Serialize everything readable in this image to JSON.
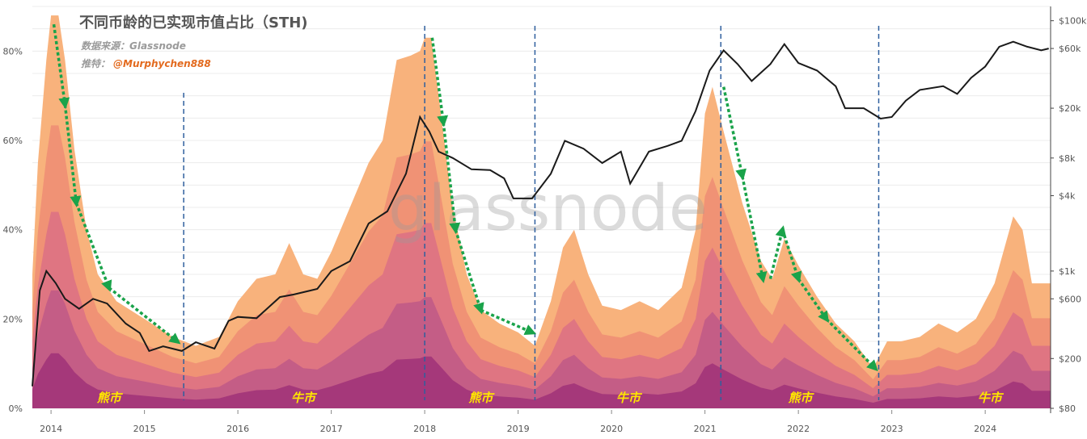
{
  "header": {
    "title": "不同币龄的已实现市值占比（STH)",
    "source": "数据来源：Glassnode",
    "twitter_prefix": "推特：",
    "twitter_handle": "@Murphychen888",
    "watermark": "glassnode"
  },
  "colors": {
    "band_outer": "#f8b27c",
    "band_2": "#f09275",
    "band_3": "#df7582",
    "band_4": "#c45d86",
    "band_inner": "#a5387a",
    "price_line": "#1a1a1a",
    "arrow": "#1aa34a",
    "cycle_line": "#2f5f9e",
    "phase_text": "#ffe600"
  },
  "chart_data": {
    "type": "area",
    "x_ticks": [
      "2014",
      "2015",
      "2016",
      "2017",
      "2018",
      "2019",
      "2020",
      "2021",
      "2022",
      "2023",
      "2024"
    ],
    "y_left_ticks": [
      "0%",
      "20%",
      "40%",
      "60%",
      "80%"
    ],
    "y_right_ticks": [
      "$80",
      "$200",
      "$600",
      "$1k",
      "$4k",
      "$8k",
      "$20k",
      "$60k",
      "$100k"
    ],
    "xlim": [
      2013.8,
      2024.7
    ],
    "ylim_left": [
      0,
      90
    ],
    "ylim_right": [
      80,
      130000
    ],
    "y_right_scale": "log",
    "grid": true,
    "sth_share_pct": [
      {
        "x": 2013.8,
        "y": 30
      },
      {
        "x": 2013.86,
        "y": 55
      },
      {
        "x": 2013.95,
        "y": 78
      },
      {
        "x": 2014.0,
        "y": 88
      },
      {
        "x": 2014.08,
        "y": 88
      },
      {
        "x": 2014.15,
        "y": 78
      },
      {
        "x": 2014.25,
        "y": 58
      },
      {
        "x": 2014.38,
        "y": 40
      },
      {
        "x": 2014.5,
        "y": 30
      },
      {
        "x": 2014.7,
        "y": 24
      },
      {
        "x": 2015.0,
        "y": 20
      },
      {
        "x": 2015.3,
        "y": 16
      },
      {
        "x": 2015.55,
        "y": 14
      },
      {
        "x": 2015.8,
        "y": 16
      },
      {
        "x": 2016.0,
        "y": 24
      },
      {
        "x": 2016.2,
        "y": 29
      },
      {
        "x": 2016.4,
        "y": 30
      },
      {
        "x": 2016.55,
        "y": 37
      },
      {
        "x": 2016.7,
        "y": 30
      },
      {
        "x": 2016.85,
        "y": 29
      },
      {
        "x": 2017.0,
        "y": 35
      },
      {
        "x": 2017.2,
        "y": 45
      },
      {
        "x": 2017.4,
        "y": 55
      },
      {
        "x": 2017.55,
        "y": 60
      },
      {
        "x": 2017.7,
        "y": 78
      },
      {
        "x": 2017.85,
        "y": 79
      },
      {
        "x": 2017.95,
        "y": 80
      },
      {
        "x": 2018.0,
        "y": 83
      },
      {
        "x": 2018.07,
        "y": 83
      },
      {
        "x": 2018.15,
        "y": 70
      },
      {
        "x": 2018.3,
        "y": 45
      },
      {
        "x": 2018.45,
        "y": 30
      },
      {
        "x": 2018.6,
        "y": 22
      },
      {
        "x": 2018.8,
        "y": 19
      },
      {
        "x": 2019.0,
        "y": 17
      },
      {
        "x": 2019.18,
        "y": 14
      },
      {
        "x": 2019.35,
        "y": 24
      },
      {
        "x": 2019.48,
        "y": 36
      },
      {
        "x": 2019.6,
        "y": 40
      },
      {
        "x": 2019.75,
        "y": 30
      },
      {
        "x": 2019.9,
        "y": 23
      },
      {
        "x": 2020.1,
        "y": 22
      },
      {
        "x": 2020.3,
        "y": 24
      },
      {
        "x": 2020.5,
        "y": 22
      },
      {
        "x": 2020.75,
        "y": 27
      },
      {
        "x": 2020.9,
        "y": 40
      },
      {
        "x": 2021.0,
        "y": 66
      },
      {
        "x": 2021.08,
        "y": 72
      },
      {
        "x": 2021.2,
        "y": 62
      },
      {
        "x": 2021.4,
        "y": 46
      },
      {
        "x": 2021.6,
        "y": 33
      },
      {
        "x": 2021.72,
        "y": 29
      },
      {
        "x": 2021.85,
        "y": 38
      },
      {
        "x": 2022.0,
        "y": 32
      },
      {
        "x": 2022.2,
        "y": 25
      },
      {
        "x": 2022.4,
        "y": 19
      },
      {
        "x": 2022.6,
        "y": 15
      },
      {
        "x": 2022.8,
        "y": 9
      },
      {
        "x": 2022.95,
        "y": 15
      },
      {
        "x": 2023.1,
        "y": 15
      },
      {
        "x": 2023.3,
        "y": 16
      },
      {
        "x": 2023.5,
        "y": 19
      },
      {
        "x": 2023.7,
        "y": 17
      },
      {
        "x": 2023.9,
        "y": 20
      },
      {
        "x": 2024.1,
        "y": 28
      },
      {
        "x": 2024.3,
        "y": 43
      },
      {
        "x": 2024.4,
        "y": 40
      },
      {
        "x": 2024.5,
        "y": 28
      },
      {
        "x": 2024.7,
        "y": 28
      }
    ],
    "btc_price_usd": [
      {
        "x": 2013.8,
        "y": 120
      },
      {
        "x": 2013.88,
        "y": 700
      },
      {
        "x": 2013.95,
        "y": 1000
      },
      {
        "x": 2014.05,
        "y": 800
      },
      {
        "x": 2014.15,
        "y": 600
      },
      {
        "x": 2014.3,
        "y": 500
      },
      {
        "x": 2014.45,
        "y": 600
      },
      {
        "x": 2014.6,
        "y": 550
      },
      {
        "x": 2014.8,
        "y": 380
      },
      {
        "x": 2014.95,
        "y": 320
      },
      {
        "x": 2015.05,
        "y": 230
      },
      {
        "x": 2015.2,
        "y": 250
      },
      {
        "x": 2015.4,
        "y": 230
      },
      {
        "x": 2015.55,
        "y": 270
      },
      {
        "x": 2015.75,
        "y": 240
      },
      {
        "x": 2015.9,
        "y": 400
      },
      {
        "x": 2016.0,
        "y": 430
      },
      {
        "x": 2016.2,
        "y": 420
      },
      {
        "x": 2016.45,
        "y": 620
      },
      {
        "x": 2016.6,
        "y": 650
      },
      {
        "x": 2016.85,
        "y": 720
      },
      {
        "x": 2017.0,
        "y": 1000
      },
      {
        "x": 2017.2,
        "y": 1200
      },
      {
        "x": 2017.4,
        "y": 2400
      },
      {
        "x": 2017.6,
        "y": 3000
      },
      {
        "x": 2017.8,
        "y": 6000
      },
      {
        "x": 2017.95,
        "y": 17000
      },
      {
        "x": 2018.05,
        "y": 13000
      },
      {
        "x": 2018.15,
        "y": 9000
      },
      {
        "x": 2018.3,
        "y": 8000
      },
      {
        "x": 2018.5,
        "y": 6500
      },
      {
        "x": 2018.7,
        "y": 6400
      },
      {
        "x": 2018.85,
        "y": 5500
      },
      {
        "x": 2018.95,
        "y": 3800
      },
      {
        "x": 2019.15,
        "y": 3800
      },
      {
        "x": 2019.35,
        "y": 6000
      },
      {
        "x": 2019.5,
        "y": 11000
      },
      {
        "x": 2019.7,
        "y": 9500
      },
      {
        "x": 2019.9,
        "y": 7300
      },
      {
        "x": 2020.1,
        "y": 9000
      },
      {
        "x": 2020.2,
        "y": 5000
      },
      {
        "x": 2020.4,
        "y": 9000
      },
      {
        "x": 2020.6,
        "y": 10000
      },
      {
        "x": 2020.75,
        "y": 11000
      },
      {
        "x": 2020.9,
        "y": 19000
      },
      {
        "x": 2021.05,
        "y": 40000
      },
      {
        "x": 2021.2,
        "y": 58000
      },
      {
        "x": 2021.35,
        "y": 45000
      },
      {
        "x": 2021.5,
        "y": 33000
      },
      {
        "x": 2021.7,
        "y": 45000
      },
      {
        "x": 2021.85,
        "y": 65000
      },
      {
        "x": 2022.0,
        "y": 46000
      },
      {
        "x": 2022.2,
        "y": 40000
      },
      {
        "x": 2022.4,
        "y": 30000
      },
      {
        "x": 2022.5,
        "y": 20000
      },
      {
        "x": 2022.7,
        "y": 20000
      },
      {
        "x": 2022.88,
        "y": 16500
      },
      {
        "x": 2023.0,
        "y": 17000
      },
      {
        "x": 2023.15,
        "y": 23000
      },
      {
        "x": 2023.3,
        "y": 28000
      },
      {
        "x": 2023.55,
        "y": 30000
      },
      {
        "x": 2023.7,
        "y": 26000
      },
      {
        "x": 2023.85,
        "y": 35000
      },
      {
        "x": 2024.0,
        "y": 43000
      },
      {
        "x": 2024.15,
        "y": 62000
      },
      {
        "x": 2024.3,
        "y": 68000
      },
      {
        "x": 2024.45,
        "y": 62000
      },
      {
        "x": 2024.6,
        "y": 58000
      },
      {
        "x": 2024.68,
        "y": 60000
      }
    ],
    "cycle_lines_x": [
      2015.42,
      2018.0,
      2019.18,
      2021.17,
      2022.86
    ],
    "phase_labels": [
      {
        "text": "熊市",
        "x": 2014.62
      },
      {
        "text": "牛市",
        "x": 2016.7
      },
      {
        "text": "熊市",
        "x": 2018.6
      },
      {
        "text": "牛市",
        "x": 2020.18
      },
      {
        "text": "熊市",
        "x": 2022.02
      },
      {
        "text": "牛市",
        "x": 2024.05
      }
    ],
    "downtrend_arrows": [
      [
        {
          "x": 2014.03,
          "y": 86
        },
        {
          "x": 2014.15,
          "y": 68
        },
        {
          "x": 2014.27,
          "y": 46
        },
        {
          "x": 2014.62,
          "y": 27
        },
        {
          "x": 2015.35,
          "y": 15
        }
      ],
      [
        {
          "x": 2018.08,
          "y": 83
        },
        {
          "x": 2018.2,
          "y": 64
        },
        {
          "x": 2018.33,
          "y": 40
        },
        {
          "x": 2018.6,
          "y": 22
        },
        {
          "x": 2019.15,
          "y": 17
        }
      ],
      [
        {
          "x": 2021.2,
          "y": 72
        },
        {
          "x": 2021.4,
          "y": 52
        },
        {
          "x": 2021.62,
          "y": 29
        }
      ],
      [
        {
          "x": 2021.7,
          "y": 29
        },
        {
          "x": 2021.83,
          "y": 40
        },
        {
          "x": 2022.0,
          "y": 29
        },
        {
          "x": 2022.3,
          "y": 20
        },
        {
          "x": 2022.82,
          "y": 9
        }
      ]
    ]
  }
}
